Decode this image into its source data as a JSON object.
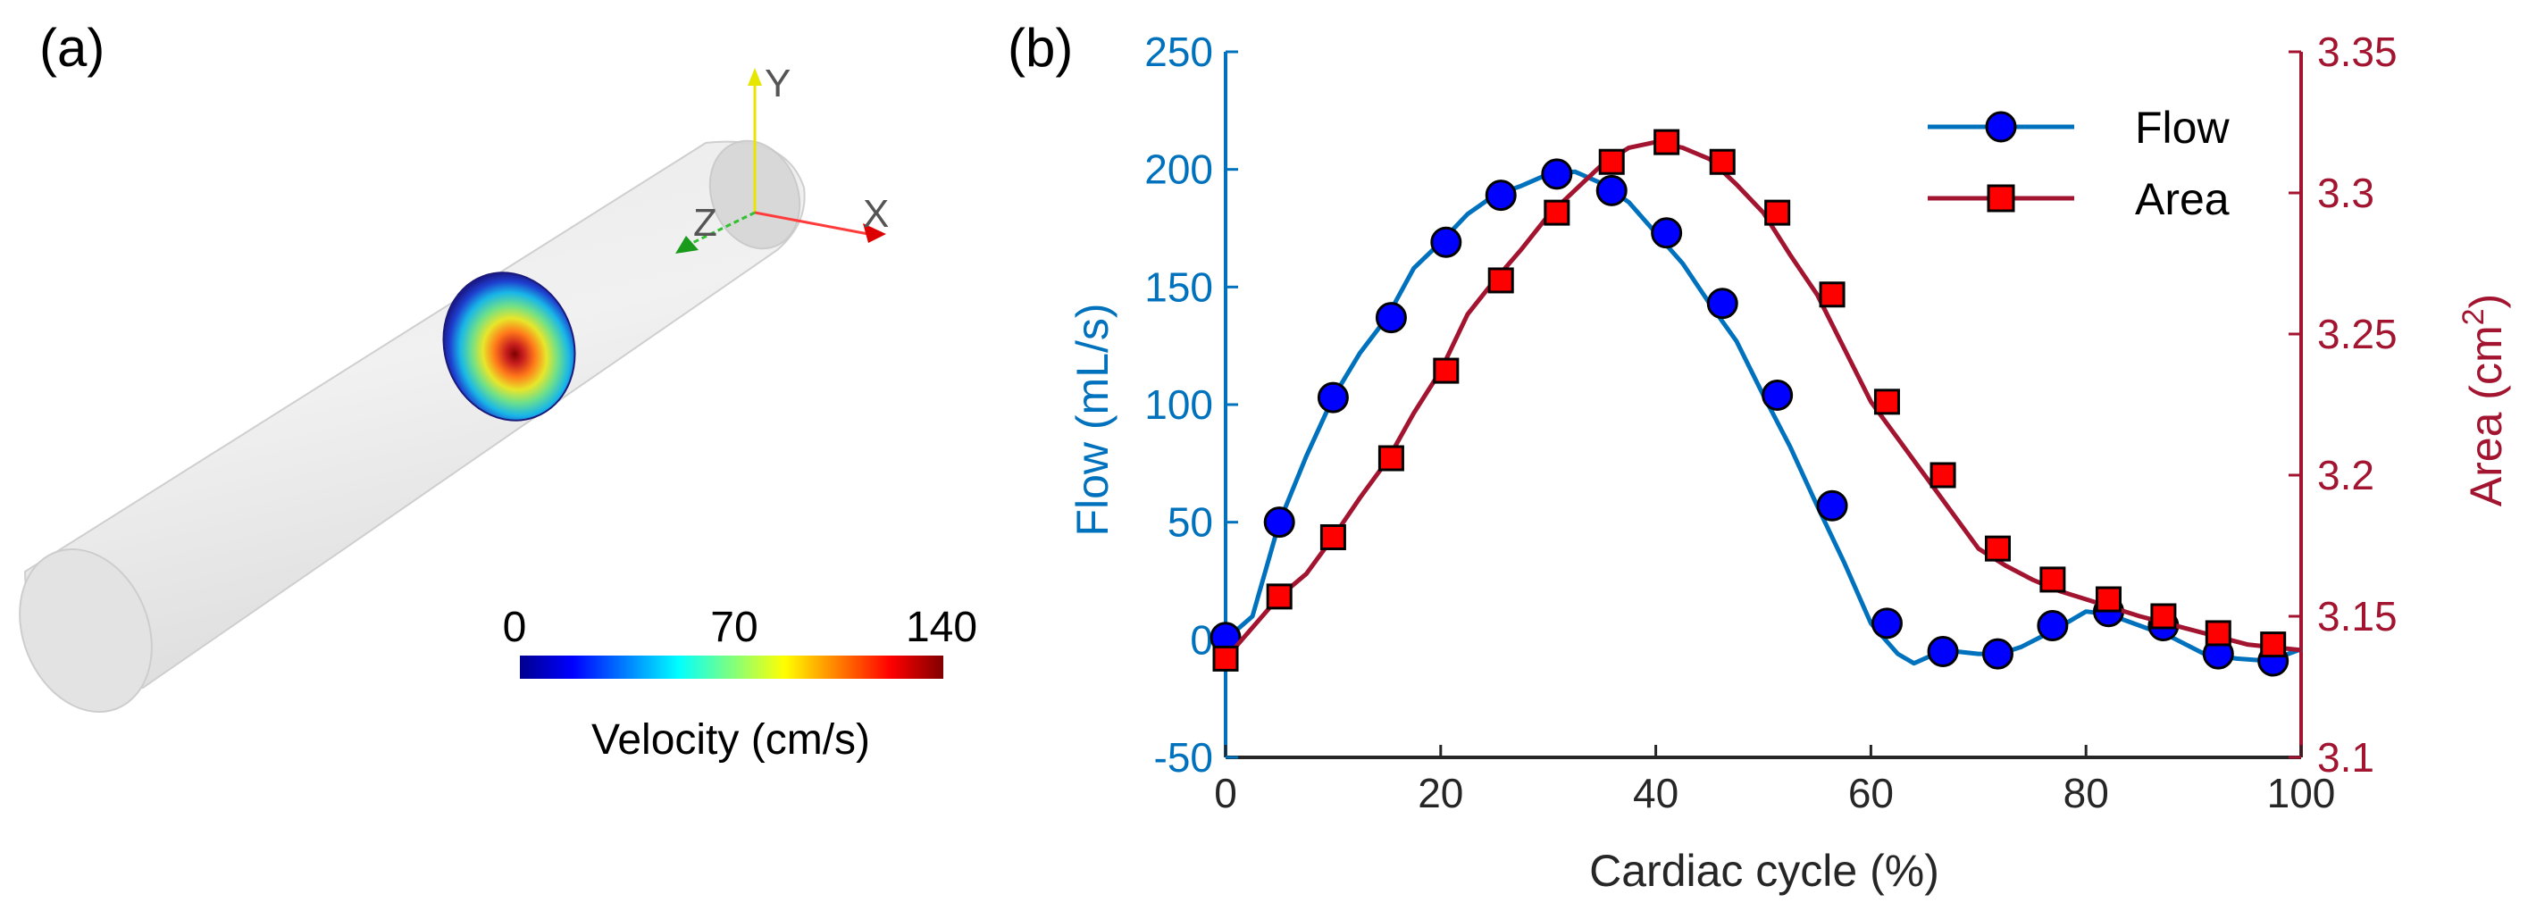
{
  "panel_a": {
    "label": "(a)",
    "axis_labels": {
      "x": "X",
      "y": "Y",
      "z": "Z"
    },
    "colorbar": {
      "ticks": [
        "0",
        "70",
        "140"
      ],
      "label": "Velocity (cm/s)",
      "min": 0,
      "max": 140,
      "colormap": "jet"
    }
  },
  "panel_b": {
    "label": "(b)"
  },
  "chart_data": {
    "type": "line",
    "xlabel": "Cardiac cycle (%)",
    "ylabel_left": "Flow (mL/s)",
    "ylabel_right": "Area (cm",
    "ylabel_right_sup": "2",
    "ylabel_right_close": ")",
    "xlim": [
      0,
      100
    ],
    "ylim_left": [
      -50,
      250
    ],
    "ylim_right": [
      3.1,
      3.35
    ],
    "x_ticks": [
      0,
      20,
      40,
      60,
      80,
      100
    ],
    "y_ticks_left": [
      -50,
      0,
      50,
      100,
      150,
      200,
      250
    ],
    "y_ticks_right": [
      3.1,
      3.15,
      3.2,
      3.25,
      3.3,
      3.35
    ],
    "legend_position": "top-right",
    "colors": {
      "flow": "#0072BD",
      "area": "#A2142F",
      "flow_marker": "#0000FF",
      "area_marker": "#FF0000"
    },
    "series": [
      {
        "name": "Flow",
        "axis": "left",
        "marker": "circle",
        "line": [
          [
            0,
            0
          ],
          [
            2.5,
            10
          ],
          [
            5,
            50
          ],
          [
            7.5,
            78
          ],
          [
            10,
            103
          ],
          [
            12.5,
            122
          ],
          [
            15,
            137
          ],
          [
            17.5,
            158
          ],
          [
            20,
            169
          ],
          [
            22.5,
            181
          ],
          [
            25,
            189
          ],
          [
            27.5,
            193
          ],
          [
            30,
            198
          ],
          [
            32.5,
            199
          ],
          [
            35,
            194
          ],
          [
            37.5,
            186
          ],
          [
            40,
            173
          ],
          [
            42.5,
            160
          ],
          [
            45,
            143
          ],
          [
            47.5,
            127
          ],
          [
            50,
            104
          ],
          [
            52.5,
            82
          ],
          [
            55,
            57
          ],
          [
            57.5,
            33
          ],
          [
            60,
            7
          ],
          [
            62.5,
            -6
          ],
          [
            64,
            -10
          ],
          [
            66,
            -6
          ],
          [
            68,
            -5
          ],
          [
            70,
            -6
          ],
          [
            72,
            -6
          ],
          [
            74,
            -3
          ],
          [
            77,
            4
          ],
          [
            80,
            12
          ],
          [
            82,
            11
          ],
          [
            85,
            6
          ],
          [
            88,
            1
          ],
          [
            91,
            -6
          ],
          [
            94,
            -8
          ],
          [
            97,
            -9
          ],
          [
            100,
            -4
          ]
        ],
        "markers_x": [
          0,
          5,
          10,
          15.4,
          20.5,
          25.6,
          30.8,
          35.9,
          41,
          46.2,
          51.3,
          56.4,
          61.5,
          66.7,
          71.8,
          76.9,
          82.1,
          87.2,
          92.3,
          97.4
        ],
        "markers_y": [
          1,
          50,
          103,
          137,
          169,
          189,
          198,
          191,
          173,
          143,
          104,
          57,
          7,
          -5,
          -6,
          6,
          12,
          6,
          -6,
          -9
        ]
      },
      {
        "name": "Area",
        "axis": "right",
        "marker": "square",
        "line": [
          [
            0,
            3.135
          ],
          [
            2.5,
            3.146
          ],
          [
            5,
            3.157
          ],
          [
            7.5,
            3.165
          ],
          [
            10,
            3.178
          ],
          [
            12.5,
            3.192
          ],
          [
            15,
            3.205
          ],
          [
            17.5,
            3.222
          ],
          [
            20,
            3.237
          ],
          [
            22.5,
            3.257
          ],
          [
            25,
            3.269
          ],
          [
            27.5,
            3.28
          ],
          [
            30,
            3.292
          ],
          [
            32.5,
            3.301
          ],
          [
            35,
            3.31
          ],
          [
            37.5,
            3.316
          ],
          [
            40,
            3.318
          ],
          [
            42.5,
            3.316
          ],
          [
            45,
            3.312
          ],
          [
            47.5,
            3.303
          ],
          [
            50,
            3.293
          ],
          [
            52.5,
            3.278
          ],
          [
            55,
            3.264
          ],
          [
            57.5,
            3.245
          ],
          [
            60,
            3.226
          ],
          [
            62.5,
            3.213
          ],
          [
            65,
            3.2
          ],
          [
            67.5,
            3.187
          ],
          [
            70,
            3.174
          ],
          [
            72.5,
            3.168
          ],
          [
            75,
            3.163
          ],
          [
            77.5,
            3.159
          ],
          [
            80,
            3.156
          ],
          [
            85,
            3.15
          ],
          [
            90,
            3.145
          ],
          [
            95,
            3.14
          ],
          [
            100,
            3.138
          ]
        ],
        "markers_x": [
          0,
          5,
          10,
          15.4,
          20.5,
          25.6,
          30.8,
          35.9,
          41,
          46.2,
          51.3,
          56.4,
          61.5,
          66.7,
          71.8,
          76.9,
          82.1,
          87.2,
          92.3,
          97.4
        ],
        "markers_y": [
          3.135,
          3.157,
          3.178,
          3.206,
          3.237,
          3.269,
          3.293,
          3.311,
          3.318,
          3.311,
          3.293,
          3.264,
          3.226,
          3.2,
          3.174,
          3.163,
          3.156,
          3.15,
          3.144,
          3.14
        ]
      }
    ]
  }
}
